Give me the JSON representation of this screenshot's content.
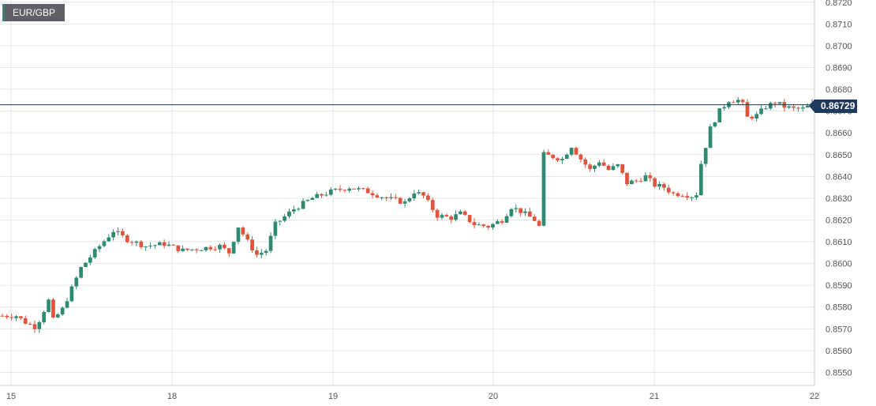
{
  "symbol": "EUR/GBP",
  "last_price_label": "0.86729",
  "colors": {
    "up": "#2e8b72",
    "down": "#e0533d",
    "grid": "#e6e6e6",
    "price_line": "#1f3a5f"
  },
  "chart_data": {
    "type": "candlestick",
    "y_ticks": [
      "0.8550",
      "0.8560",
      "0.8570",
      "0.8580",
      "0.8590",
      "0.8600",
      "0.8610",
      "0.8620",
      "0.8630",
      "0.8640",
      "0.8650",
      "0.8660",
      "0.8670",
      "0.8680",
      "0.8690",
      "0.8700",
      "0.8710",
      "0.8720"
    ],
    "x_ticks": [
      "15",
      "18",
      "19",
      "20",
      "21",
      "22"
    ],
    "ylim": [
      0.8544,
      0.8721
    ],
    "last_price": 0.86729,
    "path_approx": [
      [
        0,
        0.8576
      ],
      [
        4,
        0.8576
      ],
      [
        6,
        0.8573
      ],
      [
        8,
        0.8571
      ],
      [
        9,
        0.8574
      ],
      [
        11,
        0.8583
      ],
      [
        12,
        0.8574
      ],
      [
        14,
        0.8579
      ],
      [
        18,
        0.8598
      ],
      [
        22,
        0.8608
      ],
      [
        25,
        0.8615
      ],
      [
        28,
        0.8611
      ],
      [
        32,
        0.8608
      ],
      [
        36,
        0.8609
      ],
      [
        40,
        0.8606
      ],
      [
        44,
        0.8607
      ],
      [
        48,
        0.8608
      ],
      [
        50,
        0.8605
      ],
      [
        52,
        0.8617
      ],
      [
        54,
        0.861
      ],
      [
        56,
        0.8604
      ],
      [
        58,
        0.8606
      ],
      [
        60,
        0.8618
      ],
      [
        64,
        0.8625
      ],
      [
        68,
        0.863
      ],
      [
        72,
        0.8633
      ],
      [
        76,
        0.8635
      ],
      [
        80,
        0.8633
      ],
      [
        84,
        0.863
      ],
      [
        88,
        0.8628
      ],
      [
        90,
        0.8633
      ],
      [
        92,
        0.8631
      ],
      [
        95,
        0.8622
      ],
      [
        98,
        0.8621
      ],
      [
        100,
        0.8623
      ],
      [
        103,
        0.8618
      ],
      [
        106,
        0.8617
      ],
      [
        109,
        0.862
      ],
      [
        111,
        0.8626
      ],
      [
        113,
        0.8624
      ],
      [
        116,
        0.862
      ],
      [
        117,
        0.8617
      ],
      [
        118,
        0.865
      ],
      [
        120,
        0.8649
      ],
      [
        122,
        0.8648
      ],
      [
        124,
        0.8654
      ],
      [
        126,
        0.8648
      ],
      [
        128,
        0.8643
      ],
      [
        130,
        0.8647
      ],
      [
        132,
        0.8643
      ],
      [
        134,
        0.8645
      ],
      [
        136,
        0.8637
      ],
      [
        138,
        0.8638
      ],
      [
        140,
        0.864
      ],
      [
        142,
        0.8636
      ],
      [
        144,
        0.8635
      ],
      [
        146,
        0.8632
      ],
      [
        148,
        0.8632
      ],
      [
        150,
        0.8631
      ],
      [
        151,
        0.8632
      ],
      [
        152,
        0.8646
      ],
      [
        154,
        0.8662
      ],
      [
        156,
        0.867
      ],
      [
        158,
        0.8675
      ],
      [
        160,
        0.8675
      ],
      [
        161,
        0.8673
      ],
      [
        162,
        0.8667
      ],
      [
        164,
        0.8668
      ],
      [
        166,
        0.8672
      ],
      [
        168,
        0.8674
      ],
      [
        170,
        0.8672
      ],
      [
        172,
        0.8671
      ],
      [
        174,
        0.8671
      ],
      [
        176,
        0.8673
      ]
    ]
  }
}
